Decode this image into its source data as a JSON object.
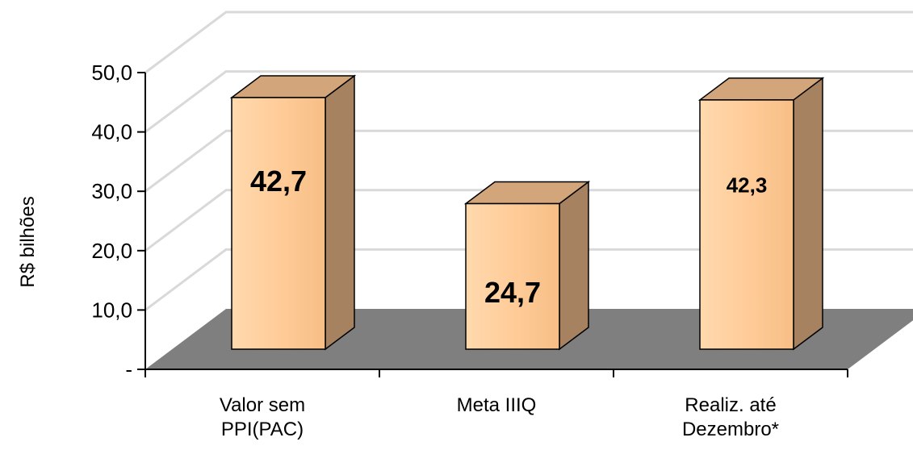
{
  "chart_data": {
    "type": "bar",
    "categories": [
      "Valor sem PPI(PAC)",
      "Meta IIIQ",
      "Realiz. até Dezembro*"
    ],
    "category_lines": [
      [
        "Valor sem",
        "PPI(PAC)"
      ],
      [
        "Meta IIIQ"
      ],
      [
        "Realiz. até",
        "Dezembro*"
      ]
    ],
    "values": [
      42.7,
      24.7,
      42.3
    ],
    "data_labels": [
      "42,7",
      "24,7",
      "42,3"
    ],
    "ylabel": "R$ bilhões",
    "ylim": [
      0,
      50
    ],
    "yticks": [
      0,
      10,
      20,
      30,
      40,
      50
    ],
    "ytick_labels": [
      "-",
      "10,0",
      "20,0",
      "30,0",
      "40,0",
      "50,0"
    ],
    "grid": true,
    "style": "3d",
    "colors": {
      "bar_front": "#FFCC99",
      "bar_top": "#D2A57A",
      "bar_side": "#A68260",
      "floor": "#7F7F7F",
      "grid": "#D9D9D9"
    }
  }
}
